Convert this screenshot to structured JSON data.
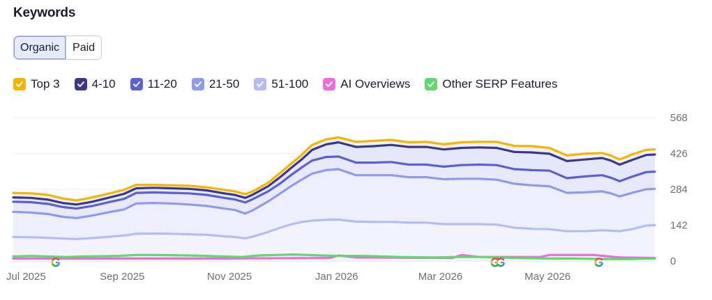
{
  "header": {
    "title": "Keywords"
  },
  "tabs": [
    {
      "label": "Organic",
      "active": true
    },
    {
      "label": "Paid",
      "active": false
    }
  ],
  "legend": [
    {
      "label": "Top 3",
      "color": "#f5b400",
      "checked": true
    },
    {
      "label": "4-10",
      "color": "#3d3788",
      "checked": true
    },
    {
      "label": "11-20",
      "color": "#5b5fcf",
      "checked": true
    },
    {
      "label": "21-50",
      "color": "#8f9ae8",
      "checked": true
    },
    {
      "label": "51-100",
      "color": "#b3bdf4",
      "checked": true
    },
    {
      "label": "AI Overviews",
      "color": "#e86fd8",
      "checked": true
    },
    {
      "label": "Other SERP Features",
      "color": "#62d66f",
      "checked": true
    }
  ],
  "chart_data": {
    "type": "area",
    "y_ticks": [
      "568",
      "426",
      "284",
      "142",
      "0"
    ],
    "ylim": [
      0,
      568
    ],
    "x_ticks": [
      {
        "label": "Jul 2025",
        "x": 0
      },
      {
        "label": "Sep 2025",
        "x": 62
      },
      {
        "label": "Nov 2025",
        "x": 123
      },
      {
        "label": "Jan 2026",
        "x": 184
      },
      {
        "label": "Mar 2026",
        "x": 243
      },
      {
        "label": "May 2026",
        "x": 304
      }
    ],
    "xlim": [
      0,
      365
    ],
    "grid": true,
    "series": [
      {
        "name": "Top 3",
        "color": "#f5b400",
        "points": [
          [
            0,
            270
          ],
          [
            10,
            268
          ],
          [
            20,
            262
          ],
          [
            28,
            248
          ],
          [
            36,
            240
          ],
          [
            45,
            252
          ],
          [
            55,
            268
          ],
          [
            63,
            282
          ],
          [
            70,
            302
          ],
          [
            80,
            302
          ],
          [
            90,
            300
          ],
          [
            100,
            298
          ],
          [
            110,
            292
          ],
          [
            120,
            282
          ],
          [
            126,
            276
          ],
          [
            132,
            265
          ],
          [
            136,
            275
          ],
          [
            145,
            310
          ],
          [
            152,
            350
          ],
          [
            158,
            385
          ],
          [
            164,
            420
          ],
          [
            170,
            460
          ],
          [
            178,
            482
          ],
          [
            185,
            490
          ],
          [
            195,
            472
          ],
          [
            205,
            476
          ],
          [
            215,
            480
          ],
          [
            225,
            470
          ],
          [
            235,
            472
          ],
          [
            245,
            462
          ],
          [
            255,
            470
          ],
          [
            265,
            472
          ],
          [
            275,
            472
          ],
          [
            285,
            456
          ],
          [
            295,
            455
          ],
          [
            305,
            448
          ],
          [
            315,
            418
          ],
          [
            325,
            425
          ],
          [
            335,
            428
          ],
          [
            340,
            418
          ],
          [
            345,
            402
          ],
          [
            352,
            422
          ],
          [
            360,
            440
          ],
          [
            365,
            442
          ]
        ]
      },
      {
        "name": "4-10",
        "color": "#3d3788",
        "points": [
          [
            0,
            252
          ],
          [
            10,
            250
          ],
          [
            20,
            243
          ],
          [
            28,
            230
          ],
          [
            36,
            224
          ],
          [
            45,
            235
          ],
          [
            55,
            252
          ],
          [
            63,
            266
          ],
          [
            70,
            288
          ],
          [
            80,
            290
          ],
          [
            90,
            288
          ],
          [
            100,
            286
          ],
          [
            110,
            280
          ],
          [
            120,
            268
          ],
          [
            126,
            262
          ],
          [
            132,
            250
          ],
          [
            136,
            262
          ],
          [
            145,
            296
          ],
          [
            152,
            333
          ],
          [
            158,
            368
          ],
          [
            164,
            402
          ],
          [
            170,
            440
          ],
          [
            178,
            462
          ],
          [
            185,
            470
          ],
          [
            195,
            452
          ],
          [
            205,
            455
          ],
          [
            215,
            460
          ],
          [
            225,
            452
          ],
          [
            235,
            452
          ],
          [
            245,
            442
          ],
          [
            255,
            448
          ],
          [
            265,
            450
          ],
          [
            275,
            448
          ],
          [
            285,
            432
          ],
          [
            295,
            430
          ],
          [
            305,
            425
          ],
          [
            315,
            396
          ],
          [
            325,
            402
          ],
          [
            335,
            408
          ],
          [
            340,
            398
          ],
          [
            345,
            382
          ],
          [
            352,
            400
          ],
          [
            360,
            420
          ],
          [
            365,
            422
          ]
        ]
      },
      {
        "name": "11-20",
        "color": "#5b5fcf",
        "points": [
          [
            0,
            235
          ],
          [
            10,
            233
          ],
          [
            20,
            226
          ],
          [
            28,
            214
          ],
          [
            36,
            208
          ],
          [
            45,
            218
          ],
          [
            55,
            234
          ],
          [
            63,
            246
          ],
          [
            70,
            270
          ],
          [
            80,
            272
          ],
          [
            90,
            270
          ],
          [
            100,
            268
          ],
          [
            110,
            262
          ],
          [
            120,
            250
          ],
          [
            126,
            244
          ],
          [
            132,
            232
          ],
          [
            136,
            244
          ],
          [
            145,
            276
          ],
          [
            152,
            308
          ],
          [
            158,
            340
          ],
          [
            164,
            370
          ],
          [
            170,
            398
          ],
          [
            178,
            412
          ],
          [
            185,
            414
          ],
          [
            195,
            390
          ],
          [
            205,
            390
          ],
          [
            215,
            392
          ],
          [
            225,
            382
          ],
          [
            235,
            382
          ],
          [
            245,
            374
          ],
          [
            255,
            380
          ],
          [
            265,
            382
          ],
          [
            275,
            380
          ],
          [
            285,
            364
          ],
          [
            295,
            360
          ],
          [
            305,
            358
          ],
          [
            315,
            328
          ],
          [
            325,
            335
          ],
          [
            335,
            340
          ],
          [
            340,
            330
          ],
          [
            345,
            316
          ],
          [
            352,
            334
          ],
          [
            360,
            352
          ],
          [
            365,
            354
          ]
        ]
      },
      {
        "name": "21-50",
        "color": "#8f9ae8",
        "points": [
          [
            0,
            195
          ],
          [
            10,
            192
          ],
          [
            20,
            186
          ],
          [
            28,
            175
          ],
          [
            36,
            170
          ],
          [
            45,
            180
          ],
          [
            55,
            194
          ],
          [
            63,
            204
          ],
          [
            70,
            228
          ],
          [
            80,
            230
          ],
          [
            90,
            228
          ],
          [
            100,
            224
          ],
          [
            110,
            218
          ],
          [
            120,
            208
          ],
          [
            126,
            202
          ],
          [
            132,
            188
          ],
          [
            136,
            200
          ],
          [
            145,
            236
          ],
          [
            152,
            268
          ],
          [
            158,
            296
          ],
          [
            164,
            322
          ],
          [
            170,
            346
          ],
          [
            178,
            360
          ],
          [
            185,
            364
          ],
          [
            195,
            340
          ],
          [
            205,
            340
          ],
          [
            215,
            340
          ],
          [
            225,
            332
          ],
          [
            235,
            332
          ],
          [
            245,
            324
          ],
          [
            255,
            326
          ],
          [
            265,
            326
          ],
          [
            275,
            322
          ],
          [
            285,
            306
          ],
          [
            295,
            300
          ],
          [
            305,
            296
          ],
          [
            315,
            270
          ],
          [
            325,
            272
          ],
          [
            335,
            276
          ],
          [
            340,
            268
          ],
          [
            345,
            256
          ],
          [
            352,
            270
          ],
          [
            360,
            284
          ],
          [
            365,
            286
          ]
        ]
      },
      {
        "name": "51-100",
        "color": "#b3bdf4",
        "points": [
          [
            0,
            95
          ],
          [
            10,
            94
          ],
          [
            20,
            92
          ],
          [
            28,
            89
          ],
          [
            36,
            87
          ],
          [
            45,
            91
          ],
          [
            55,
            96
          ],
          [
            63,
            101
          ],
          [
            70,
            108
          ],
          [
            80,
            109
          ],
          [
            90,
            108
          ],
          [
            100,
            106
          ],
          [
            110,
            104
          ],
          [
            120,
            98
          ],
          [
            126,
            95
          ],
          [
            132,
            90
          ],
          [
            136,
            96
          ],
          [
            145,
            115
          ],
          [
            152,
            132
          ],
          [
            158,
            145
          ],
          [
            164,
            154
          ],
          [
            170,
            160
          ],
          [
            178,
            163
          ],
          [
            185,
            164
          ],
          [
            195,
            156
          ],
          [
            205,
            155
          ],
          [
            215,
            155
          ],
          [
            225,
            152
          ],
          [
            235,
            152
          ],
          [
            245,
            146
          ],
          [
            255,
            146
          ],
          [
            265,
            146
          ],
          [
            275,
            144
          ],
          [
            285,
            132
          ],
          [
            295,
            128
          ],
          [
            305,
            126
          ],
          [
            315,
            118
          ],
          [
            325,
            118
          ],
          [
            335,
            122
          ],
          [
            340,
            120
          ],
          [
            345,
            118
          ],
          [
            352,
            126
          ],
          [
            360,
            140
          ],
          [
            365,
            142
          ]
        ]
      },
      {
        "name": "AI Overviews",
        "color": "#e86fd8",
        "points": [
          [
            0,
            10
          ],
          [
            60,
            10
          ],
          [
            120,
            10
          ],
          [
            180,
            12
          ],
          [
            185,
            22
          ],
          [
            195,
            14
          ],
          [
            250,
            12
          ],
          [
            255,
            24
          ],
          [
            265,
            16
          ],
          [
            300,
            16
          ],
          [
            305,
            24
          ],
          [
            330,
            24
          ],
          [
            345,
            14
          ],
          [
            365,
            12
          ]
        ]
      },
      {
        "name": "Other SERP Features",
        "color": "#62d66f",
        "points": [
          [
            0,
            18
          ],
          [
            10,
            20
          ],
          [
            20,
            18
          ],
          [
            30,
            16
          ],
          [
            40,
            18
          ],
          [
            60,
            20
          ],
          [
            70,
            24
          ],
          [
            80,
            24
          ],
          [
            100,
            22
          ],
          [
            120,
            18
          ],
          [
            130,
            16
          ],
          [
            140,
            22
          ],
          [
            150,
            24
          ],
          [
            160,
            26
          ],
          [
            175,
            22
          ],
          [
            185,
            20
          ],
          [
            200,
            20
          ],
          [
            220,
            16
          ],
          [
            240,
            14
          ],
          [
            250,
            16
          ],
          [
            265,
            16
          ],
          [
            285,
            12
          ],
          [
            305,
            10
          ],
          [
            320,
            10
          ],
          [
            335,
            8
          ],
          [
            350,
            8
          ],
          [
            365,
            10
          ]
        ]
      }
    ]
  }
}
